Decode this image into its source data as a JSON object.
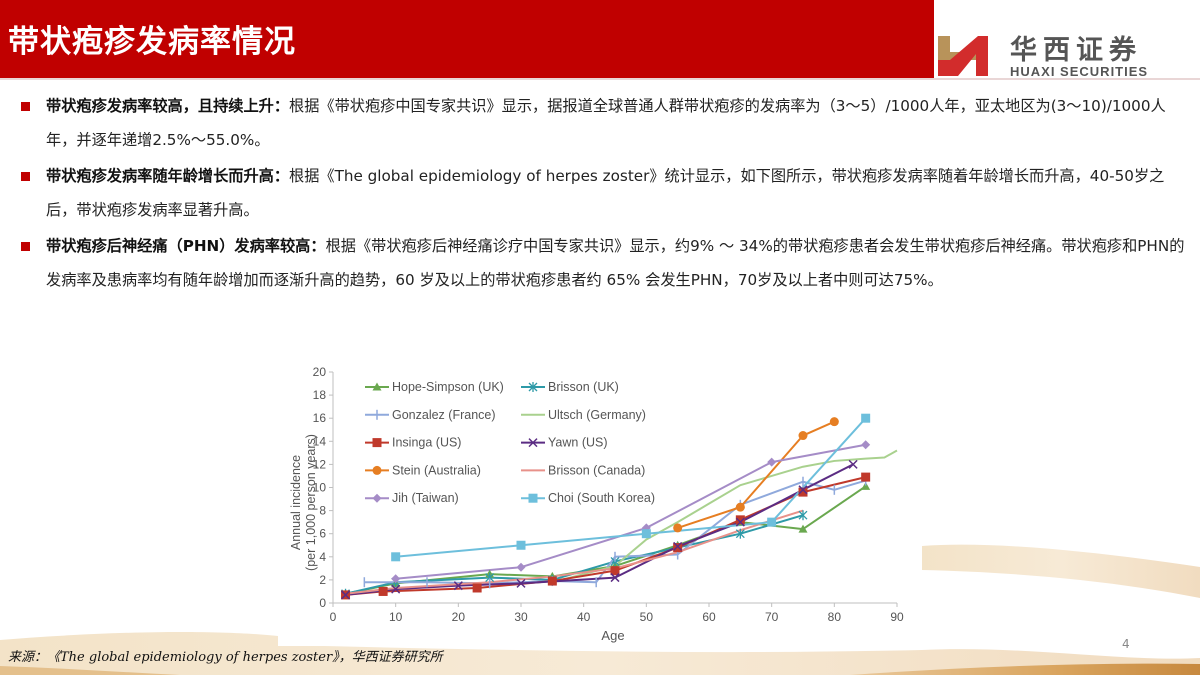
{
  "header": {
    "title": "带状疱疹发病率情况",
    "logo_cn": "华西证券",
    "logo_en": "HUAXI SECURITIES",
    "accent_color": "#c00000"
  },
  "bullets": [
    {
      "lead": "带状疱疹发病率较高，且持续上升：",
      "body": "根据《带状疱疹中国专家共识》显示，据报道全球普通人群带状疱疹的发病率为（3～5）/1000人年，亚太地区为(3～10)/1000人年，并逐年递增2.5%～55.0%。"
    },
    {
      "lead": "带状疱疹发病率随年龄增长而升高：",
      "body": "根据《The global epidemiology of herpes zoster》统计显示，如下图所示，带状疱疹发病率随着年龄增长而升高，40-50岁之后，带状疱疹发病率显著升高。"
    },
    {
      "lead": "带状疱疹后神经痛（PHN）发病率较高：",
      "body": "根据《带状疱疹后神经痛诊疗中国专家共识》显示，约9% ～ 34%的带状疱疹患者会发生带状疱疹后神经痛。带状疱疹和PHN的发病率及患病率均有随年龄增加而逐渐升高的趋势，60 岁及以上的带状疱疹患者约 65% 会发生PHN，70岁及以上者中则可达75%。"
    }
  ],
  "chart_data": {
    "type": "line",
    "title": "",
    "xlabel": "Age",
    "ylabel": "Annual incidence (per 1,000 person years)",
    "xlim": [
      0,
      90
    ],
    "ylim": [
      0,
      20
    ],
    "xticks": [
      0,
      10,
      20,
      30,
      40,
      50,
      60,
      70,
      80,
      90
    ],
    "yticks": [
      0,
      2,
      4,
      6,
      8,
      10,
      12,
      14,
      16,
      18,
      20
    ],
    "grid": false,
    "legend_position": "upper-left, two columns",
    "series": [
      {
        "name": "Hope-Simpson (UK)",
        "color": "#6aa84f",
        "marker": "triangle",
        "x": [
          2,
          10,
          25,
          35,
          45,
          55,
          65,
          75,
          85
        ],
        "y": [
          0.8,
          1.7,
          2.5,
          2.3,
          3.2,
          5.0,
          7.0,
          6.4,
          10.1
        ]
      },
      {
        "name": "Brisson (UK)",
        "color": "#2e9aa8",
        "marker": "star",
        "x": [
          2,
          10,
          25,
          35,
          45,
          55,
          65,
          75
        ],
        "y": [
          0.8,
          1.8,
          2.2,
          2.0,
          3.6,
          4.8,
          6.0,
          7.6
        ]
      },
      {
        "name": "Gonzalez (France)",
        "color": "#8fa9dc",
        "marker": "cross",
        "x": [
          5,
          15,
          25,
          35,
          42,
          45,
          55,
          65,
          75,
          80,
          85
        ],
        "y": [
          1.8,
          1.8,
          1.7,
          1.9,
          1.8,
          4.0,
          4.2,
          8.5,
          10.5,
          9.8,
          10.6
        ]
      },
      {
        "name": "Ultsch (Germany)",
        "color": "#a9d18e",
        "marker": "none",
        "x": [
          35,
          45,
          50,
          55,
          60,
          65,
          70,
          75,
          80,
          85,
          88,
          90
        ],
        "y": [
          1.8,
          3.2,
          5.5,
          7.0,
          8.6,
          10.2,
          11.0,
          11.8,
          12.3,
          12.5,
          12.6,
          13.2
        ]
      },
      {
        "name": "Insinga (US)",
        "color": "#c0392b",
        "marker": "square",
        "x": [
          2,
          8,
          23,
          35,
          45,
          55,
          65,
          75,
          85
        ],
        "y": [
          0.7,
          1.0,
          1.3,
          1.9,
          2.8,
          4.8,
          7.2,
          9.6,
          10.9
        ]
      },
      {
        "name": "Yawn (US)",
        "color": "#5b2c83",
        "marker": "x",
        "x": [
          2,
          10,
          20,
          30,
          45,
          55,
          65,
          75,
          83
        ],
        "y": [
          0.7,
          1.2,
          1.5,
          1.7,
          2.2,
          4.9,
          7.0,
          9.8,
          12.0
        ]
      },
      {
        "name": "Stein (Australia)",
        "color": "#e67e22",
        "marker": "circle",
        "x": [
          55,
          65,
          75,
          80
        ],
        "y": [
          6.5,
          8.3,
          14.5,
          15.7
        ]
      },
      {
        "name": "Brisson (Canada)",
        "color": "#e8918a",
        "marker": "none",
        "x": [
          2,
          10,
          25,
          35,
          45,
          55,
          65,
          75
        ],
        "y": [
          0.8,
          1.3,
          1.8,
          2.3,
          3.0,
          4.4,
          6.3,
          8.0
        ]
      },
      {
        "name": "Jih (Taiwan)",
        "color": "#a58cc7",
        "marker": "diamond",
        "x": [
          10,
          30,
          50,
          70,
          85
        ],
        "y": [
          2.1,
          3.1,
          6.5,
          12.2,
          13.7
        ]
      },
      {
        "name": "Choi (South Korea)",
        "color": "#6dbfdc",
        "marker": "square",
        "x": [
          10,
          30,
          50,
          70,
          85
        ],
        "y": [
          4.0,
          5.0,
          6.0,
          7.0,
          16.0
        ]
      }
    ]
  },
  "footer": {
    "source": "来源：《The global epidemiology of herpes zoster》，华西证券研究所",
    "page_number": "4"
  }
}
